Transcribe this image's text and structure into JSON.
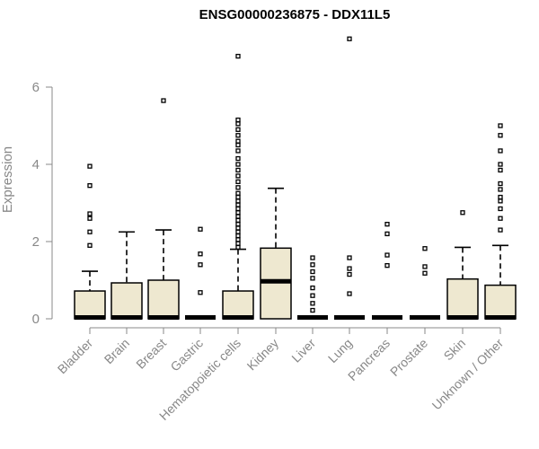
{
  "chart_data": {
    "type": "box",
    "title": "ENSG00000236875 - DDX11L5",
    "ylabel": "Expression",
    "xlabel": "",
    "ylim": [
      0,
      7.3
    ],
    "yticks": [
      0,
      2,
      4,
      6
    ],
    "grid": false,
    "categories": [
      "Bladder",
      "Brain",
      "Breast",
      "Gastric",
      "Hematopoietic cells",
      "Kidney",
      "Liver",
      "Lung",
      "Pancreas",
      "Prostate",
      "Skin",
      "Unknown / Other"
    ],
    "box_fill": "#eee8d0",
    "boxes": [
      {
        "q1": 0,
        "median": 0,
        "q3": 0.72,
        "whisker_high": 1.23,
        "outliers": [
          3.95,
          3.45,
          2.72,
          2.6,
          2.25,
          1.9
        ]
      },
      {
        "q1": 0,
        "median": 0,
        "q3": 0.93,
        "whisker_high": 2.25,
        "outliers": []
      },
      {
        "q1": 0,
        "median": 0,
        "q3": 1.0,
        "whisker_high": 2.3,
        "outliers": [
          5.65
        ]
      },
      {
        "q1": 0,
        "median": 0,
        "q3": 0,
        "whisker_high": 0,
        "outliers": [
          2.32,
          1.68,
          1.4,
          0.68
        ]
      },
      {
        "q1": 0,
        "median": 0,
        "q3": 0.72,
        "whisker_high": 1.8,
        "outliers": [
          6.8,
          5.15,
          5.05,
          4.9,
          4.75,
          4.6,
          4.5,
          4.35,
          4.15,
          4.0,
          3.85,
          3.7,
          3.55,
          3.4,
          3.25,
          3.15,
          3.05,
          2.95,
          2.85,
          2.75,
          2.65,
          2.55,
          2.45,
          2.35,
          2.25,
          2.15,
          2.05,
          1.95,
          1.85
        ]
      },
      {
        "q1": 0,
        "median": 0.97,
        "q3": 1.83,
        "whisker_high": 3.38,
        "outliers": []
      },
      {
        "q1": 0,
        "median": 0,
        "q3": 0,
        "whisker_high": 0,
        "outliers": [
          1.58,
          1.4,
          1.22,
          1.05,
          0.8,
          0.6,
          0.4,
          0.22
        ]
      },
      {
        "q1": 0,
        "median": 0,
        "q3": 0,
        "whisker_high": 0,
        "outliers": [
          7.25,
          1.58,
          1.3,
          1.15,
          0.65
        ]
      },
      {
        "q1": 0,
        "median": 0,
        "q3": 0,
        "whisker_high": 0,
        "outliers": [
          2.45,
          2.2,
          1.65,
          1.38
        ]
      },
      {
        "q1": 0,
        "median": 0,
        "q3": 0,
        "whisker_high": 0,
        "outliers": [
          1.82,
          1.35,
          1.18
        ]
      },
      {
        "q1": 0,
        "median": 0,
        "q3": 1.03,
        "whisker_high": 1.85,
        "outliers": [
          2.75
        ]
      },
      {
        "q1": 0,
        "median": 0,
        "q3": 0.87,
        "whisker_high": 1.9,
        "outliers": [
          5.0,
          4.75,
          4.35,
          4.0,
          3.85,
          3.5,
          3.35,
          3.15,
          3.05,
          2.85,
          2.6,
          2.3
        ]
      }
    ]
  }
}
